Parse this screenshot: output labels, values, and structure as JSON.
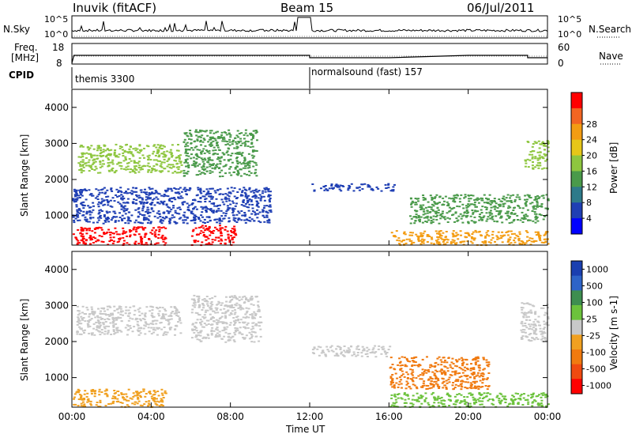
{
  "header": {
    "station": "Inuvik (fitACF)",
    "beam": "Beam 15",
    "date": "06/Jul/2011"
  },
  "noise_panel": {
    "left_label": "N.Sky",
    "right_label": "N.Search",
    "left_ticks": [
      "10^5",
      "10^0"
    ],
    "right_ticks": [
      "10^5",
      "10^0"
    ]
  },
  "freq_panel": {
    "left_label_1": "Freq.",
    "left_label_2": "[MHz]",
    "right_label": "Nave",
    "left_ticks": [
      "18",
      "8"
    ],
    "right_ticks": [
      "60",
      "0"
    ]
  },
  "cpid_panel": {
    "label": "CPID",
    "modes": [
      {
        "start_hour": 0,
        "text": "themis 3300"
      },
      {
        "start_hour": 12,
        "text": "normalsound (fast) 157"
      }
    ]
  },
  "colors": {
    "power_scale": [
      "#0000ff",
      "#1f3fb4",
      "#2e7a8a",
      "#4a9a4a",
      "#8ec63f",
      "#e6c619",
      "#f39c12",
      "#f26522",
      "#ff0000"
    ],
    "velocity_scale": [
      "#1a3fb0",
      "#2e64c8",
      "#3e8e50",
      "#6cc23c",
      "#c8c8c8",
      "#f0a020",
      "#f07a10",
      "#f04a10",
      "#ff0000"
    ]
  },
  "chart_data": [
    {
      "type": "heatmap",
      "name": "power",
      "ylabel": "Slant Range [km]",
      "ylim": [
        180,
        4500
      ],
      "yticks": [
        "1000",
        "2000",
        "3000",
        "4000"
      ],
      "xlim": [
        0,
        24
      ],
      "xticks": [
        "00:00",
        "04:00",
        "08:00",
        "12:00",
        "16:00",
        "20:00",
        "00:00"
      ],
      "colorbar": {
        "label": "Power [dB]",
        "ticks": [
          "4",
          "8",
          "12",
          "16",
          "20",
          "24",
          "28"
        ],
        "range": [
          0,
          30
        ]
      },
      "regions": [
        {
          "x": [
            0.0,
            4.7
          ],
          "y": [
            200,
            700
          ],
          "level": 27
        },
        {
          "x": [
            6.0,
            8.3
          ],
          "y": [
            200,
            750
          ],
          "level": 27
        },
        {
          "x": [
            16.0,
            24.0
          ],
          "y": [
            200,
            600
          ],
          "level": 22
        },
        {
          "x": [
            0.2,
            5.5
          ],
          "y": [
            2200,
            3000
          ],
          "level": 14
        },
        {
          "x": [
            5.6,
            9.3
          ],
          "y": [
            2100,
            3400
          ],
          "level": 10
        },
        {
          "x": [
            12.0,
            16.3
          ],
          "y": [
            1700,
            1900
          ],
          "level": 6
        },
        {
          "x": [
            22.8,
            24.0
          ],
          "y": [
            2300,
            3100
          ],
          "level": 14
        },
        {
          "x": [
            17.0,
            24.0
          ],
          "y": [
            800,
            1600
          ],
          "level": 12
        },
        {
          "x": [
            0.0,
            10.0
          ],
          "y": [
            800,
            1800
          ],
          "level": 6
        }
      ]
    },
    {
      "type": "heatmap",
      "name": "velocity",
      "ylabel": "Slant Range [km]",
      "ylim": [
        180,
        4500
      ],
      "yticks": [
        "1000",
        "2000",
        "3000",
        "4000"
      ],
      "xlim": [
        0,
        24
      ],
      "xticks": [
        "00:00",
        "04:00",
        "08:00",
        "12:00",
        "16:00",
        "20:00",
        "00:00"
      ],
      "xlabel": "Time UT",
      "colorbar": {
        "label": "Velocity [m s-1]",
        "ticks": [
          "1000",
          "500",
          "100",
          "25",
          "-25",
          "-100",
          "-500",
          "-1000"
        ]
      },
      "regions": [
        {
          "x": [
            0.0,
            4.7
          ],
          "y": [
            200,
            700
          ],
          "level": -100
        },
        {
          "x": [
            16.0,
            21.0
          ],
          "y": [
            700,
            1600
          ],
          "level": -500
        },
        {
          "x": [
            6.0,
            9.5
          ],
          "y": [
            2000,
            3300
          ],
          "level": 0
        },
        {
          "x": [
            0.2,
            5.5
          ],
          "y": [
            2200,
            3000
          ],
          "level": 0
        },
        {
          "x": [
            22.6,
            24.0
          ],
          "y": [
            2000,
            3100
          ],
          "level": 0
        },
        {
          "x": [
            12.0,
            16.0
          ],
          "y": [
            1600,
            1900
          ],
          "level": 0
        },
        {
          "x": [
            16.0,
            24.0
          ],
          "y": [
            200,
            600
          ],
          "level": 80
        }
      ]
    }
  ]
}
